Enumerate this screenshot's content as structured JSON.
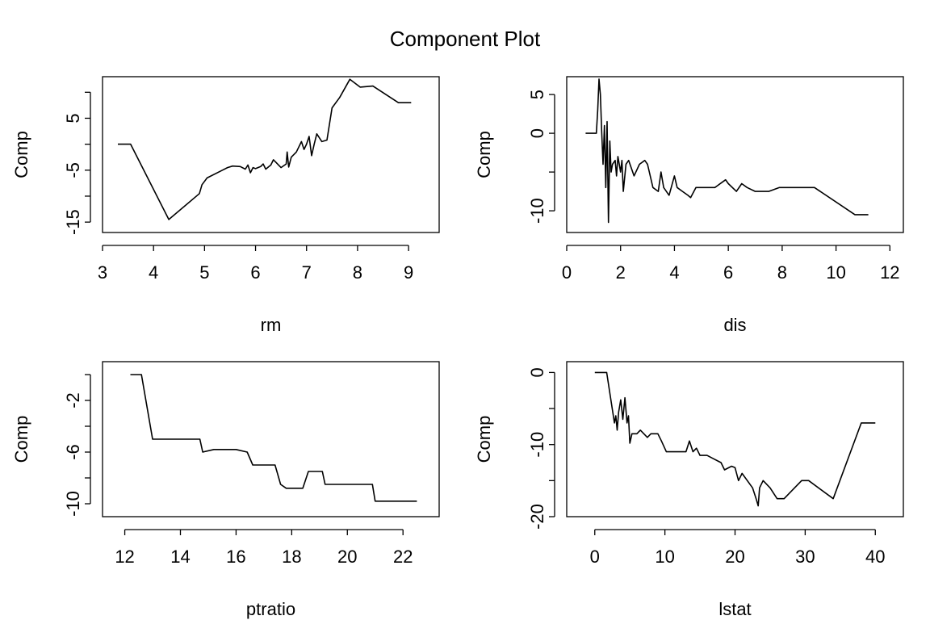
{
  "figure": {
    "title": "Component Plot"
  },
  "chart_data": [
    {
      "type": "line",
      "xlabel": "rm",
      "ylabel": "Comp",
      "xlim": [
        3.0,
        9.6
      ],
      "ylim": [
        -17,
        13
      ],
      "xticks": [
        "3",
        "4",
        "5",
        "6",
        "7",
        "8",
        "9"
      ],
      "yticks": [
        "-15",
        "-5",
        "5"
      ],
      "yticks_minor": [
        -10,
        0,
        10
      ],
      "x": [
        3.3,
        3.55,
        4.3,
        4.9,
        4.95,
        5.05,
        5.35,
        5.45,
        5.55,
        5.7,
        5.8,
        5.85,
        5.9,
        5.95,
        6.0,
        6.1,
        6.15,
        6.2,
        6.3,
        6.35,
        6.4,
        6.5,
        6.6,
        6.62,
        6.65,
        6.7,
        6.8,
        6.9,
        6.95,
        7.0,
        7.05,
        7.1,
        7.15,
        7.2,
        7.3,
        7.4,
        7.5,
        7.65,
        7.85,
        8.05,
        8.3,
        8.8,
        9.05
      ],
      "y": [
        0,
        0,
        -14.5,
        -9.5,
        -7.8,
        -6.5,
        -5,
        -4.5,
        -4.2,
        -4.3,
        -4.8,
        -4,
        -5.5,
        -4.5,
        -4.7,
        -4.3,
        -3.8,
        -4.8,
        -4,
        -3,
        -3.5,
        -4.5,
        -3.8,
        -1.5,
        -4.4,
        -2.5,
        -1.5,
        0.5,
        -1,
        0,
        1.5,
        -2.2,
        0,
        2,
        0.5,
        0.8,
        7,
        9,
        12.5,
        11,
        11.2,
        8,
        8
      ]
    },
    {
      "type": "line",
      "xlabel": "dis",
      "ylabel": "Comp",
      "xlim": [
        0,
        12.5
      ],
      "ylim": [
        -12.8,
        7.3
      ],
      "xticks": [
        "0",
        "2",
        "4",
        "6",
        "8",
        "10",
        "12"
      ],
      "yticks": [
        "-10",
        "0",
        "5"
      ],
      "yticks_minor": [
        -5
      ],
      "x": [
        0.7,
        1.1,
        1.15,
        1.2,
        1.25,
        1.3,
        1.35,
        1.4,
        1.45,
        1.5,
        1.55,
        1.6,
        1.65,
        1.7,
        1.8,
        1.85,
        1.9,
        1.95,
        2.0,
        2.05,
        2.1,
        2.2,
        2.3,
        2.5,
        2.7,
        2.9,
        3.0,
        3.2,
        3.4,
        3.5,
        3.6,
        3.8,
        4.0,
        4.1,
        4.3,
        4.5,
        4.6,
        4.8,
        5.0,
        5.5,
        5.9,
        6.0,
        6.3,
        6.5,
        6.7,
        7.0,
        7.5,
        7.9,
        8.5,
        9.2,
        10.7,
        11.2
      ],
      "y": [
        0,
        0,
        3,
        7,
        5,
        0,
        -4,
        1,
        -7,
        1.5,
        -11.5,
        -1,
        -5,
        -4,
        -3.5,
        -5.5,
        -3,
        -4,
        -5,
        -3.5,
        -7.5,
        -4,
        -3.5,
        -5.5,
        -4,
        -3.5,
        -4,
        -7,
        -7.5,
        -5,
        -7,
        -8,
        -5.5,
        -7,
        -7.5,
        -8,
        -8.3,
        -7,
        -7,
        -7,
        -6,
        -6.5,
        -7.5,
        -6.5,
        -7,
        -7.5,
        -7.5,
        -7,
        -7,
        -7,
        -10.5,
        -10.5
      ]
    },
    {
      "type": "line",
      "xlabel": "ptratio",
      "ylabel": "Comp",
      "xlim": [
        11.2,
        23.3
      ],
      "ylim": [
        -11,
        1
      ],
      "xticks": [
        "12",
        "14",
        "16",
        "18",
        "20",
        "22"
      ],
      "yticks": [
        "-10",
        "-6",
        "-2"
      ],
      "yticks_minor": [
        -8,
        -4,
        0
      ],
      "x": [
        12.2,
        12.6,
        13.0,
        14.7,
        14.8,
        15.2,
        16.0,
        16.4,
        16.6,
        17.4,
        17.6,
        17.8,
        18.4,
        18.6,
        19.1,
        19.2,
        20.9,
        21.0,
        22.5
      ],
      "y": [
        0,
        0,
        -5,
        -5,
        -6,
        -5.8,
        -5.8,
        -6,
        -7,
        -7,
        -8.5,
        -8.8,
        -8.8,
        -7.5,
        -7.5,
        -8.5,
        -8.5,
        -9.8,
        -9.8
      ]
    },
    {
      "type": "line",
      "xlabel": "lstat",
      "ylabel": "Comp",
      "xlim": [
        -4,
        44
      ],
      "ylim": [
        -20,
        1.5
      ],
      "xticks": [
        "0",
        "10",
        "20",
        "30",
        "40"
      ],
      "yticks": [
        "-20",
        "-10",
        "0"
      ],
      "yticks_minor": [
        -15,
        -5
      ],
      "x": [
        0,
        1.7,
        2.8,
        3.0,
        3.2,
        3.4,
        3.7,
        4.0,
        4.3,
        4.6,
        4.8,
        5.0,
        5.3,
        6.0,
        6.5,
        7.5,
        8.0,
        9.0,
        9.5,
        10.2,
        11.0,
        13.0,
        13.5,
        14.0,
        14.5,
        15.0,
        16.0,
        17.0,
        18.0,
        18.5,
        19.5,
        20.0,
        20.5,
        21.0,
        22.5,
        23.0,
        23.3,
        23.5,
        24.0,
        25.0,
        26.0,
        27.0,
        28.0,
        29.5,
        30.5,
        34.0,
        38.0,
        40.0
      ],
      "y": [
        0,
        0,
        -7,
        -6,
        -8,
        -5.5,
        -3.8,
        -6.5,
        -3.5,
        -7,
        -6,
        -9.8,
        -8.5,
        -8.5,
        -8,
        -9,
        -8.5,
        -8.5,
        -9.5,
        -11,
        -11,
        -11,
        -9.5,
        -11,
        -10.5,
        -11.5,
        -11.5,
        -12,
        -12.5,
        -13.5,
        -13,
        -13.2,
        -15,
        -14,
        -16,
        -17.5,
        -18.5,
        -16,
        -15,
        -16,
        -17.5,
        -17.5,
        -16.5,
        -15,
        -15,
        -17.5,
        -7,
        -7
      ]
    }
  ]
}
